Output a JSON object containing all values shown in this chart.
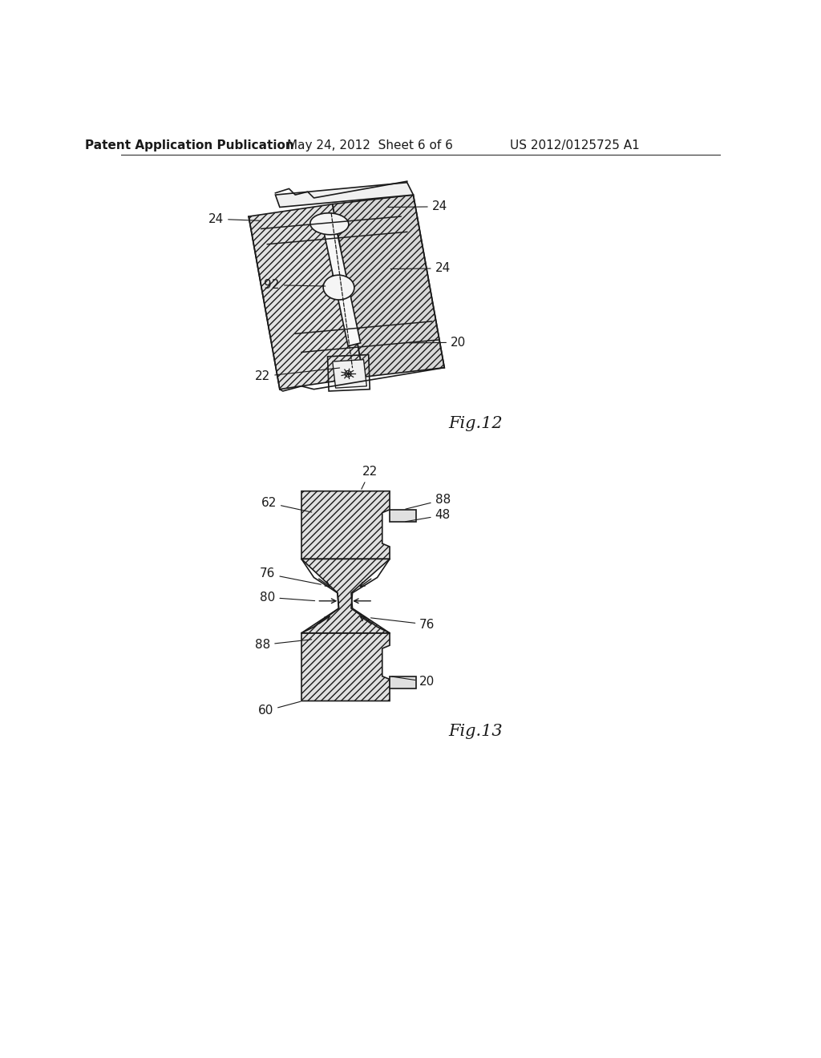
{
  "background_color": "#ffffff",
  "header_left": "Patent Application Publication",
  "header_mid": "May 24, 2012  Sheet 6 of 6",
  "header_right": "US 2012/0125725 A1",
  "header_fontsize": 11,
  "fig12_label": "Fig.12",
  "fig13_label": "Fig.13",
  "line_color": "#1a1a1a",
  "label_fontsize": 11,
  "fig_label_fontsize": 15
}
